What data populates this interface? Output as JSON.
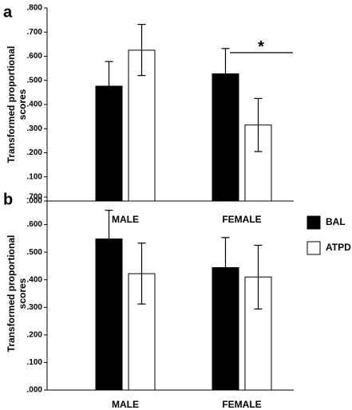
{
  "colors": {
    "bal": "#000000",
    "atpd": "#ffffff",
    "stroke": "#000000"
  },
  "legend": [
    {
      "label": "BAL",
      "color": "#000000"
    },
    {
      "label": "ATPD",
      "color": "#ffffff"
    }
  ],
  "chart_data": [
    {
      "panel": "a",
      "type": "bar",
      "ylabel_lines": [
        "Transformed proportional",
        "scores"
      ],
      "categories": [
        "MALE",
        "FEMALE"
      ],
      "ylim": [
        0,
        0.8
      ],
      "ticks": [
        ".000",
        ".100",
        ".200",
        ".300",
        ".400",
        ".500",
        ".600",
        ".700",
        ".800"
      ],
      "tick_values": [
        0,
        0.1,
        0.2,
        0.3,
        0.4,
        0.5,
        0.6,
        0.7,
        0.8
      ],
      "series": [
        {
          "name": "BAL",
          "values": [
            0.476,
            0.527
          ],
          "err_low": [
            0.374,
            0.423
          ],
          "err_high": [
            0.578,
            0.632
          ]
        },
        {
          "name": "ATPD",
          "values": [
            0.625,
            0.315
          ],
          "err_low": [
            0.52,
            0.205
          ],
          "err_high": [
            0.732,
            0.425
          ]
        }
      ],
      "significance": {
        "label": "*",
        "category_index": 1,
        "y": 0.615
      }
    },
    {
      "panel": "b",
      "type": "bar",
      "ylabel_lines": [
        "Transformed proportional",
        "scores"
      ],
      "categories": [
        "MALE",
        "FEMALE"
      ],
      "ylim": [
        0,
        0.7
      ],
      "ticks": [
        ".000",
        ".100",
        ".200",
        ".300",
        ".400",
        ".500",
        ".600",
        ".700"
      ],
      "tick_values": [
        0,
        0.1,
        0.2,
        0.3,
        0.4,
        0.5,
        0.6,
        0.7
      ],
      "series": [
        {
          "name": "BAL",
          "values": [
            0.548,
            0.444
          ],
          "err_low": [
            0.443,
            0.334
          ],
          "err_high": [
            0.652,
            0.553
          ]
        },
        {
          "name": "ATPD",
          "values": [
            0.422,
            0.41
          ],
          "err_low": [
            0.312,
            0.294
          ],
          "err_high": [
            0.533,
            0.525
          ]
        }
      ]
    }
  ]
}
